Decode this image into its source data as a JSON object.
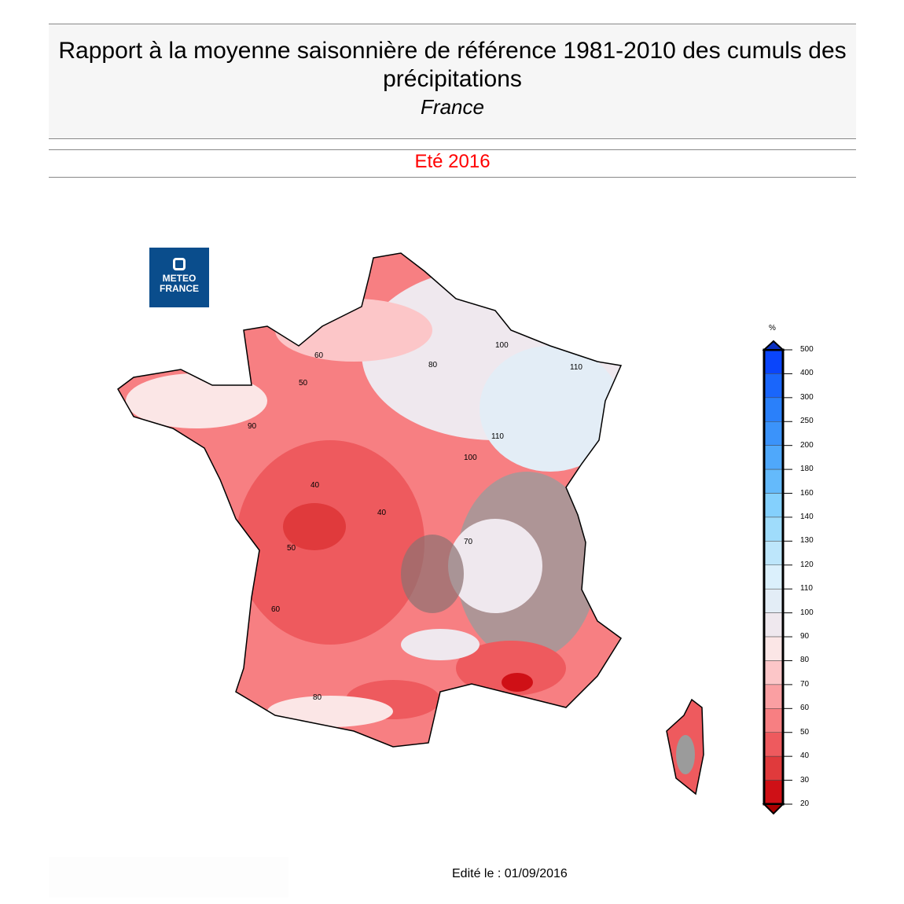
{
  "header": {
    "title": "Rapport à la moyenne saisonnière de référence 1981-2010 des cumuls des précipitations",
    "region": "France",
    "season": "Eté 2016"
  },
  "logo": {
    "line1": "METEO",
    "line2": "FRANCE"
  },
  "legend": {
    "unit": "%",
    "ticks": [
      "500",
      "400",
      "300",
      "250",
      "200",
      "180",
      "160",
      "140",
      "130",
      "120",
      "110",
      "100",
      "90",
      "80",
      "70",
      "60",
      "50",
      "40",
      "30",
      "20"
    ],
    "colors": [
      "#0a45fb",
      "#1a66fb",
      "#2a80fa",
      "#3b93fa",
      "#4fa8fb",
      "#64bafb",
      "#84d0fd",
      "#9fdcfb",
      "#bde6fb",
      "#dbf0fc",
      "#e3edf6",
      "#efe8ee",
      "#fbe6e6",
      "#fcc6c8",
      "#fa9fa2",
      "#f77f82",
      "#ee5a5e",
      "#e03a3c",
      "#cf1016"
    ]
  },
  "map_labels": [
    "60",
    "80",
    "100",
    "110",
    "90",
    "50",
    "40",
    "70",
    "100",
    "110",
    "40",
    "50",
    "60",
    "80"
  ],
  "footer": {
    "edited": "Edité le : 01/09/2016"
  }
}
